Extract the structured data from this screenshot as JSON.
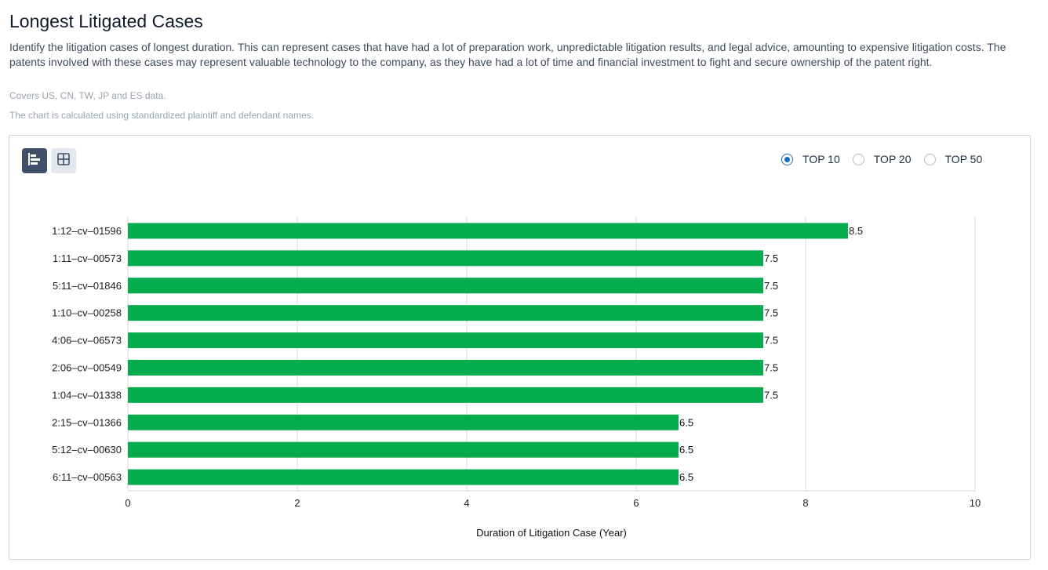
{
  "page": {
    "title": "Longest Litigated Cases",
    "description": "Identify the litigation cases of longest duration. This can represent cases that have had a lot of preparation work, unpredictable litigation results, and legal advice, amounting to expensive litigation costs. The patents involved with these cases may represent valuable technology to the company, as they have had a lot of time and financial investment to fight and secure ownership of the patent right.",
    "note_coverage": "Covers US, CN, TW, JP and ES data.",
    "note_standardized": "The chart is calculated using standardized plaintiff and defendant names."
  },
  "toolbar": {
    "bar_view_icon": "horizontal-bar-chart-icon",
    "table_view_icon": "table-grid-icon",
    "top_options": [
      {
        "label": "TOP 10",
        "checked": true
      },
      {
        "label": "TOP 20",
        "checked": false
      },
      {
        "label": "TOP 50",
        "checked": false
      }
    ]
  },
  "colors": {
    "bar": "#05ab4d",
    "accent": "#1a6fb3",
    "grid": "#d9d9d9"
  },
  "chart_data": {
    "type": "bar",
    "orientation": "horizontal",
    "categories": [
      "1:12–cv–01596",
      "1:11–cv–00573",
      "5:11–cv–01846",
      "1:10–cv–00258",
      "4:06–cv–06573",
      "2:06–cv–00549",
      "1:04–cv–01338",
      "2:15–cv–01366",
      "5:12–cv–00630",
      "6:11–cv–00563"
    ],
    "values": [
      8.5,
      7.5,
      7.5,
      7.5,
      7.5,
      7.5,
      7.5,
      6.5,
      6.5,
      6.5
    ],
    "data_labels": [
      "8.5",
      "7.5",
      "7.5",
      "7.5",
      "7.5",
      "7.5",
      "7.5",
      "6.5",
      "6.5",
      "6.5"
    ],
    "xlabel": "Duration of Litigation Case (Year)",
    "ylabel": "",
    "xlim": [
      0,
      10
    ],
    "xticks": [
      0,
      2,
      4,
      6,
      8,
      10
    ],
    "grid": true
  }
}
